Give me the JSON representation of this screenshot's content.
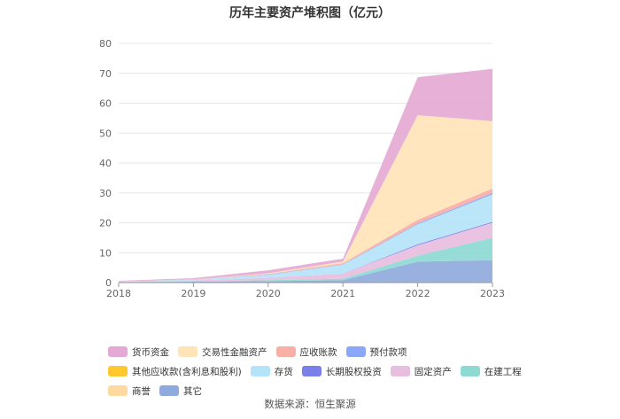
{
  "chart_data": {
    "type": "area",
    "title": "历年主要资产堆积图（亿元）",
    "x": [
      "2018",
      "2019",
      "2020",
      "2021",
      "2022",
      "2023"
    ],
    "ylim": [
      0,
      80
    ],
    "yticks": [
      0,
      10,
      20,
      30,
      40,
      50,
      60,
      70,
      80
    ],
    "grid": true,
    "legend_position": "bottom",
    "stacked": true,
    "series": [
      {
        "name": "其它",
        "color": "#8FAADC",
        "values": [
          0.2,
          0.3,
          0.5,
          0.8,
          7.0,
          7.5
        ]
      },
      {
        "name": "商誉",
        "color": "#FFD9A0",
        "values": [
          0,
          0,
          0,
          0,
          0,
          0
        ]
      },
      {
        "name": "在建工程",
        "color": "#8ED9D2",
        "values": [
          0,
          0.1,
          0.3,
          0.5,
          2.0,
          7.5
        ]
      },
      {
        "name": "固定资产",
        "color": "#E8BEDF",
        "values": [
          0.1,
          0.3,
          0.8,
          1.7,
          3.5,
          5.0
        ]
      },
      {
        "name": "长期股权投资",
        "color": "#7B7FE8",
        "values": [
          0,
          0,
          0,
          0,
          0.3,
          0.3
        ]
      },
      {
        "name": "存货",
        "color": "#B5E3F7",
        "values": [
          0.1,
          0.3,
          1.0,
          3.0,
          6.7,
          9.2
        ]
      },
      {
        "name": "其他应收款(含利息和股利)",
        "color": "#FFC830",
        "values": [
          0,
          0,
          0,
          0,
          0,
          0
        ]
      },
      {
        "name": "预付款项",
        "color": "#8AA8F7",
        "values": [
          0,
          0,
          0.1,
          0.1,
          0.3,
          0.5
        ]
      },
      {
        "name": "应收账款",
        "color": "#F8AFA6",
        "values": [
          0,
          0.1,
          0.2,
          0.4,
          1.2,
          1.5
        ]
      },
      {
        "name": "交易性金融资产",
        "color": "#FFE4B8",
        "values": [
          0,
          0,
          0.2,
          0.5,
          35.0,
          22.5
        ]
      },
      {
        "name": "货币资金",
        "color": "#E4A9D4",
        "values": [
          0.2,
          0.4,
          1.0,
          1.0,
          12.7,
          17.5
        ]
      }
    ],
    "legend_order": [
      "货币资金",
      "交易性金融资产",
      "应收账款",
      "预付款项",
      "其他应收款(含利息和股利)",
      "存货",
      "长期股权投资",
      "固定资产",
      "在建工程",
      "商誉",
      "其它"
    ]
  },
  "source_text": "数据来源：恒生聚源"
}
